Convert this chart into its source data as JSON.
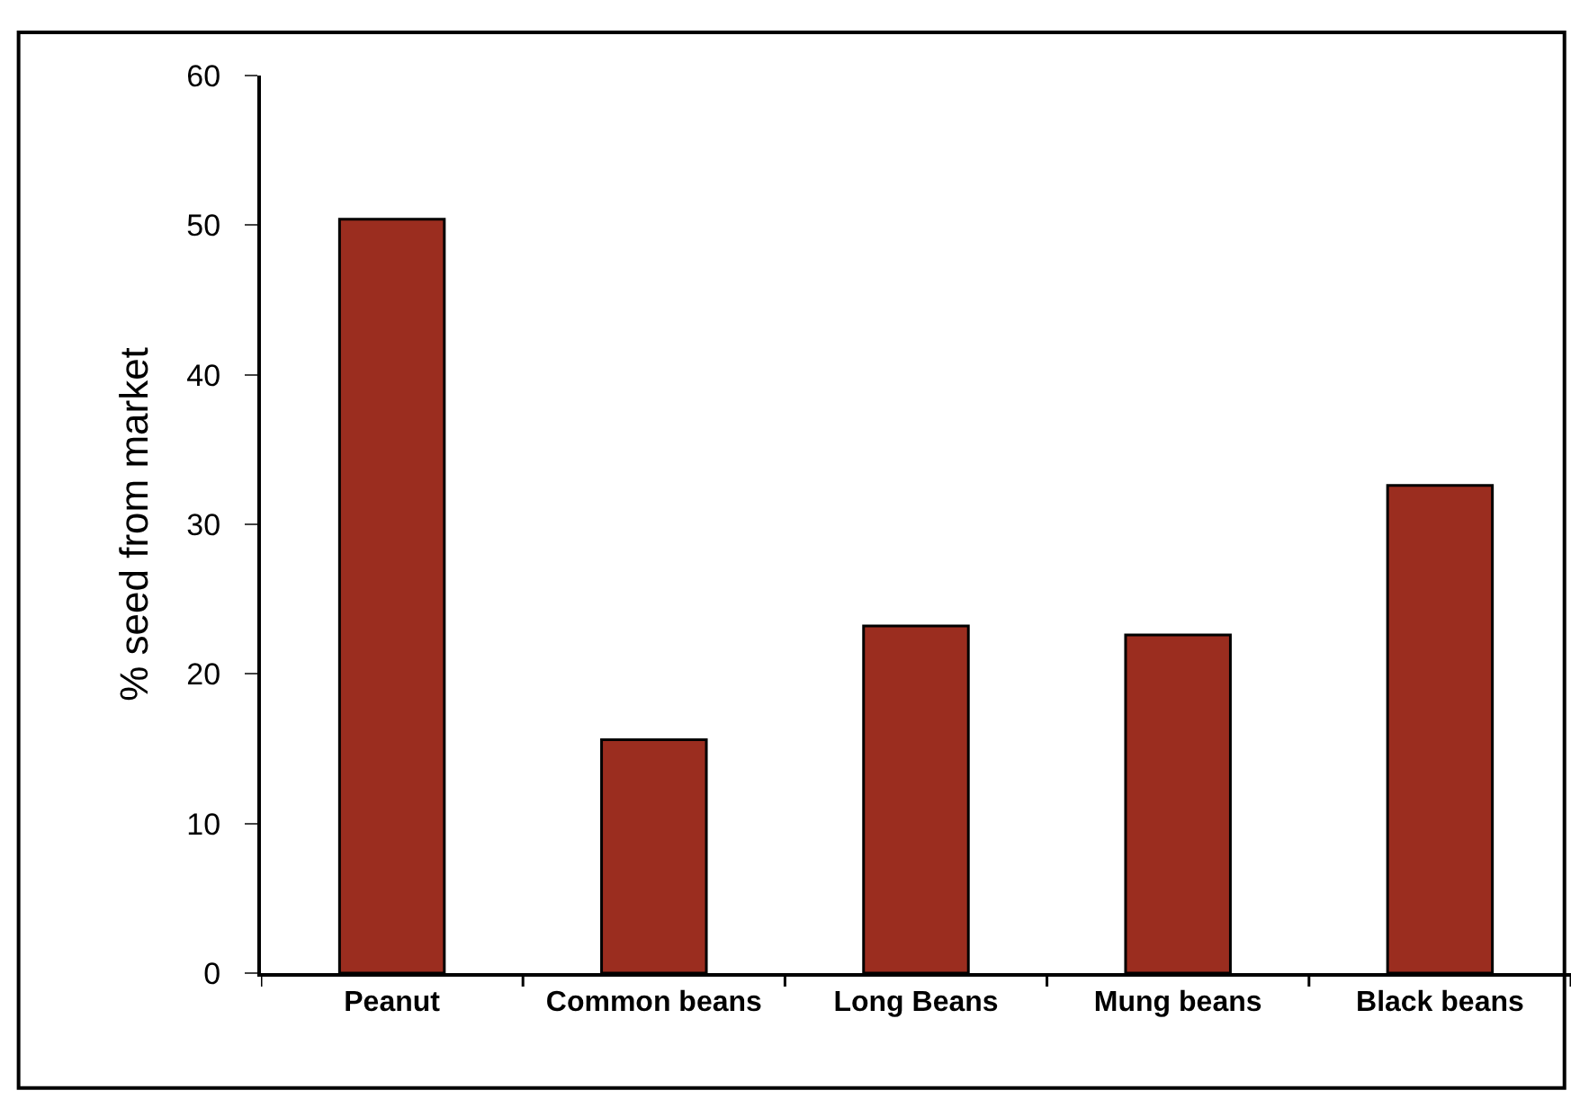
{
  "chart_data": {
    "type": "bar",
    "ylabel": "% seed from market",
    "categories": [
      "Peanut",
      "Common beans",
      "Long Beans",
      "Mung beans",
      "Black beans"
    ],
    "values": [
      50.4,
      15.6,
      23.2,
      22.6,
      32.6
    ],
    "color": "#9b2d1f",
    "ylim": [
      0,
      60
    ],
    "yticks": [
      0,
      10,
      20,
      30,
      40,
      50,
      60
    ],
    "grid": false
  }
}
